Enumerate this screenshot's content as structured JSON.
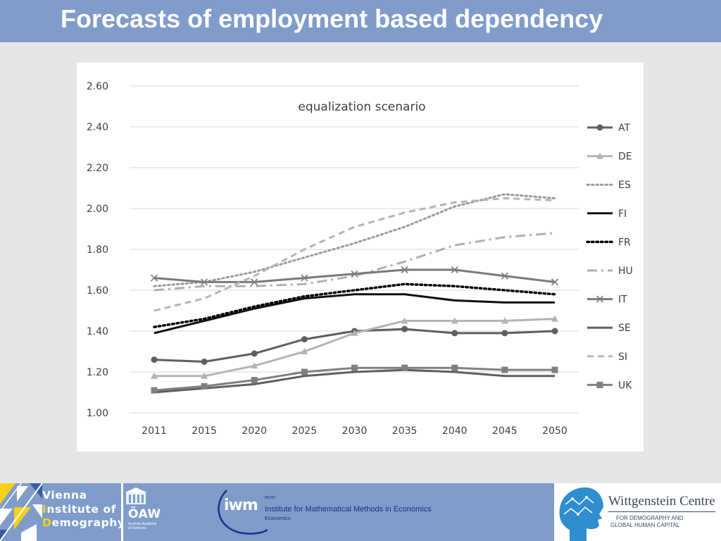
{
  "slide": {
    "title": "Forecasts of employment based dependency"
  },
  "chart_data": {
    "type": "line",
    "title": "equalization scenario",
    "xlabel": "",
    "ylabel": "",
    "categories": [
      "2011",
      "2015",
      "2020",
      "2025",
      "2030",
      "2035",
      "2040",
      "2045",
      "2050"
    ],
    "ylim": [
      1.0,
      2.6
    ],
    "yticks": [
      "1.00",
      "1.20",
      "1.40",
      "1.60",
      "1.80",
      "2.00",
      "2.20",
      "2.40",
      "2.60"
    ],
    "grid": true,
    "legend": "right",
    "series": [
      {
        "name": "AT",
        "values": [
          1.26,
          1.25,
          1.29,
          1.36,
          1.4,
          1.41,
          1.39,
          1.39,
          1.4
        ],
        "color": "#5f5f5f",
        "dash": "solid",
        "marker": "circle",
        "width": 3
      },
      {
        "name": "DE",
        "values": [
          1.18,
          1.18,
          1.23,
          1.3,
          1.39,
          1.45,
          1.45,
          1.45,
          1.46
        ],
        "color": "#b4b4b4",
        "dash": "solid",
        "marker": "triangle",
        "width": 3
      },
      {
        "name": "ES",
        "values": [
          1.62,
          1.64,
          1.69,
          1.76,
          1.83,
          1.91,
          2.01,
          2.07,
          2.05
        ],
        "color": "#9a9a9a",
        "dash": "dot",
        "marker": "none",
        "width": 3
      },
      {
        "name": "FI",
        "values": [
          1.39,
          1.45,
          1.51,
          1.56,
          1.58,
          1.58,
          1.55,
          1.54,
          1.54
        ],
        "color": "#111111",
        "dash": "solid",
        "marker": "none",
        "width": 3
      },
      {
        "name": "FR",
        "values": [
          1.42,
          1.46,
          1.52,
          1.57,
          1.6,
          1.63,
          1.62,
          1.6,
          1.58
        ],
        "color": "#000000",
        "dash": "dot",
        "marker": "none",
        "width": 3.5
      },
      {
        "name": "HU",
        "values": [
          1.6,
          1.62,
          1.62,
          1.63,
          1.67,
          1.74,
          1.82,
          1.86,
          1.88
        ],
        "color": "#b0b0b0",
        "dash": "dashdot",
        "marker": "none",
        "width": 3
      },
      {
        "name": "IT",
        "values": [
          1.66,
          1.64,
          1.64,
          1.66,
          1.68,
          1.7,
          1.7,
          1.67,
          1.64
        ],
        "color": "#7a7a7a",
        "dash": "solid",
        "marker": "x",
        "width": 3
      },
      {
        "name": "SE",
        "values": [
          1.1,
          1.12,
          1.14,
          1.18,
          1.2,
          1.21,
          1.2,
          1.18,
          1.18
        ],
        "color": "#5f5f5f",
        "dash": "solid",
        "marker": "none",
        "width": 3
      },
      {
        "name": "SI",
        "values": [
          1.5,
          1.56,
          1.67,
          1.8,
          1.91,
          1.98,
          2.03,
          2.05,
          2.04
        ],
        "color": "#b6b6b6",
        "dash": "dash",
        "marker": "none",
        "width": 3
      },
      {
        "name": "UK",
        "values": [
          1.11,
          1.13,
          1.16,
          1.2,
          1.22,
          1.22,
          1.22,
          1.21,
          1.21
        ],
        "color": "#808080",
        "dash": "solid",
        "marker": "square",
        "width": 3
      }
    ]
  },
  "footer": {
    "vid_line1": "Vienna",
    "vid_line2_initial": "I",
    "vid_line2_rest": "nstitute of",
    "vid_line3_initial": "D",
    "vid_line3_rest": "emography",
    "oaw_label": "ÖAW",
    "oaw_sub1": "Austrian Academy",
    "oaw_sub2": "of Sciences",
    "iwm_mark": "iwm",
    "iwm_econ": "econ",
    "iwm_name": "Institute for Mathematical Methods in Economics",
    "iwm_sub": "Economics",
    "wc_title": "Wittgenstein Centre",
    "wc_sub1": "FOR DEMOGRAPHY AND",
    "wc_sub2": "GLOBAL HUMAN CAPITAL",
    "colors": {
      "band": "#7f9ccb",
      "accent_yellow": "#f7d117",
      "navy": "#1f2f8a",
      "wc_text": "#3a4a64"
    }
  }
}
